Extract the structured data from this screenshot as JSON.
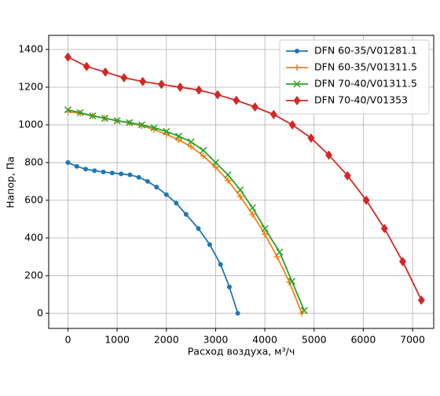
{
  "chart_data": {
    "type": "line",
    "xlabel": "Расход воздуха, м³/ч",
    "ylabel": "Напор, Па",
    "xlim": [
      -390,
      7430
    ],
    "ylim": [
      -80,
      1475
    ],
    "xticks": [
      0,
      1000,
      2000,
      3000,
      4000,
      5000,
      6000,
      7000
    ],
    "yticks": [
      0,
      200,
      400,
      600,
      800,
      1000,
      1200,
      1400
    ],
    "grid": true,
    "legend": "upper-right",
    "series": [
      {
        "name": "DFN 60-35/V01281.1",
        "color": "#1f77b4",
        "marker": "circle",
        "x": [
          0,
          180,
          360,
          540,
          720,
          900,
          1080,
          1260,
          1440,
          1620,
          1800,
          2000,
          2200,
          2400,
          2650,
          2880,
          3100,
          3280,
          3450
        ],
        "values": [
          800,
          780,
          765,
          757,
          750,
          745,
          740,
          735,
          722,
          700,
          670,
          630,
          585,
          525,
          450,
          365,
          260,
          140,
          0
        ]
      },
      {
        "name": "DFN 60-35/V01311.5",
        "color": "#ff7f0e",
        "marker": "plus",
        "x": [
          0,
          250,
          500,
          750,
          1000,
          1250,
          1500,
          1750,
          2000,
          2250,
          2500,
          2750,
          3000,
          3250,
          3500,
          3750,
          4000,
          4250,
          4500,
          4750
        ],
        "values": [
          1070,
          1062,
          1048,
          1035,
          1022,
          1010,
          995,
          975,
          950,
          920,
          885,
          835,
          775,
          705,
          620,
          525,
          420,
          300,
          165,
          0
        ]
      },
      {
        "name": "DFN 70-40/V01311.5",
        "color": "#2ca02c",
        "marker": "cross",
        "x": [
          0,
          250,
          500,
          750,
          1000,
          1250,
          1500,
          1750,
          2000,
          2250,
          2500,
          2750,
          3000,
          3250,
          3500,
          3750,
          4000,
          4300,
          4550,
          4800
        ],
        "values": [
          1080,
          1065,
          1048,
          1035,
          1022,
          1012,
          1000,
          985,
          965,
          940,
          910,
          865,
          800,
          735,
          655,
          560,
          450,
          325,
          170,
          15
        ]
      },
      {
        "name": "DFN 70-40/V01353",
        "color": "#d62728",
        "marker": "diamond",
        "x": [
          0,
          380,
          760,
          1140,
          1520,
          1900,
          2280,
          2660,
          3040,
          3420,
          3800,
          4180,
          4560,
          4940,
          5300,
          5680,
          6060,
          6430,
          6800,
          7180
        ],
        "values": [
          1360,
          1310,
          1280,
          1250,
          1230,
          1215,
          1200,
          1185,
          1160,
          1130,
          1095,
          1055,
          1000,
          930,
          840,
          730,
          600,
          450,
          275,
          70
        ]
      }
    ]
  }
}
